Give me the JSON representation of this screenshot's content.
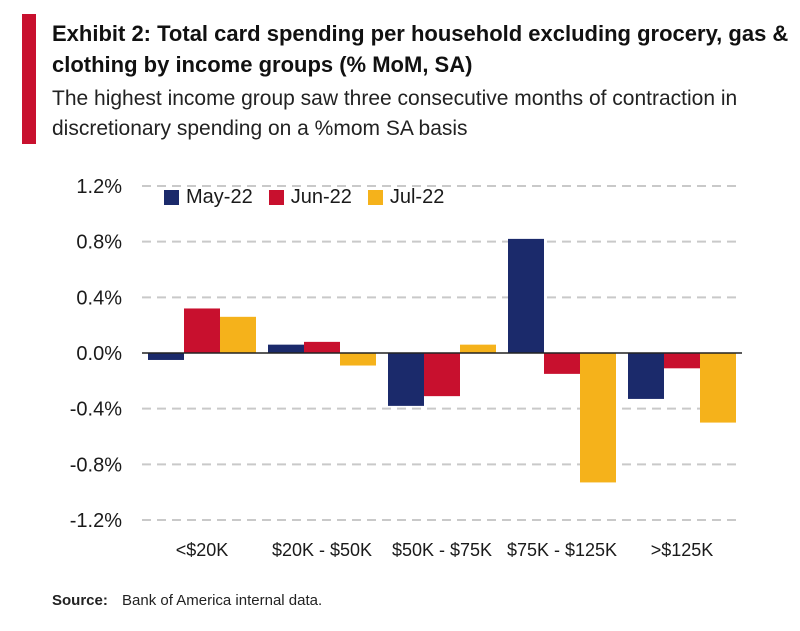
{
  "header": {
    "title": "Exhibit 2: Total card spending per household excluding grocery, gas & clothing by income groups (% MoM, SA)",
    "subtitle": "The highest income group saw three consecutive months of contraction in discretionary spending on a %mom SA basis"
  },
  "source": {
    "label": "Source:",
    "text": "Bank of America internal data."
  },
  "colors": {
    "accent": "#c8102e",
    "may": "#1b2a6b",
    "jun": "#c8102e",
    "jul": "#f5b21b",
    "grid": "#c9c9c9"
  },
  "chart_data": {
    "type": "bar",
    "title": "Exhibit 2: Total card spending per household excluding grocery, gas & clothing by income groups (% MoM, SA)",
    "xlabel": "",
    "ylabel": "",
    "categories": [
      "<$20K",
      "$20K - $50K",
      "$50K - $75K",
      "$75K - $125K",
      ">$125K"
    ],
    "series": [
      {
        "name": "May-22",
        "color": "#1b2a6b",
        "values": [
          -0.05,
          0.06,
          -0.38,
          0.82,
          -0.33
        ]
      },
      {
        "name": "Jun-22",
        "color": "#c8102e",
        "values": [
          0.32,
          0.08,
          -0.31,
          -0.15,
          -0.11
        ]
      },
      {
        "name": "Jul-22",
        "color": "#f5b21b",
        "values": [
          0.26,
          -0.09,
          0.06,
          -0.93,
          -0.5
        ]
      }
    ],
    "ylim": [
      -1.2,
      1.2
    ],
    "yticks": [
      1.2,
      0.8,
      0.4,
      0.0,
      -0.4,
      -0.8,
      -1.2
    ],
    "ytick_labels": [
      "1.2%",
      "0.8%",
      "0.4%",
      "0.0%",
      "-0.4%",
      "-0.8%",
      "-1.2%"
    ],
    "grid": true,
    "legend_position": "top-left"
  }
}
